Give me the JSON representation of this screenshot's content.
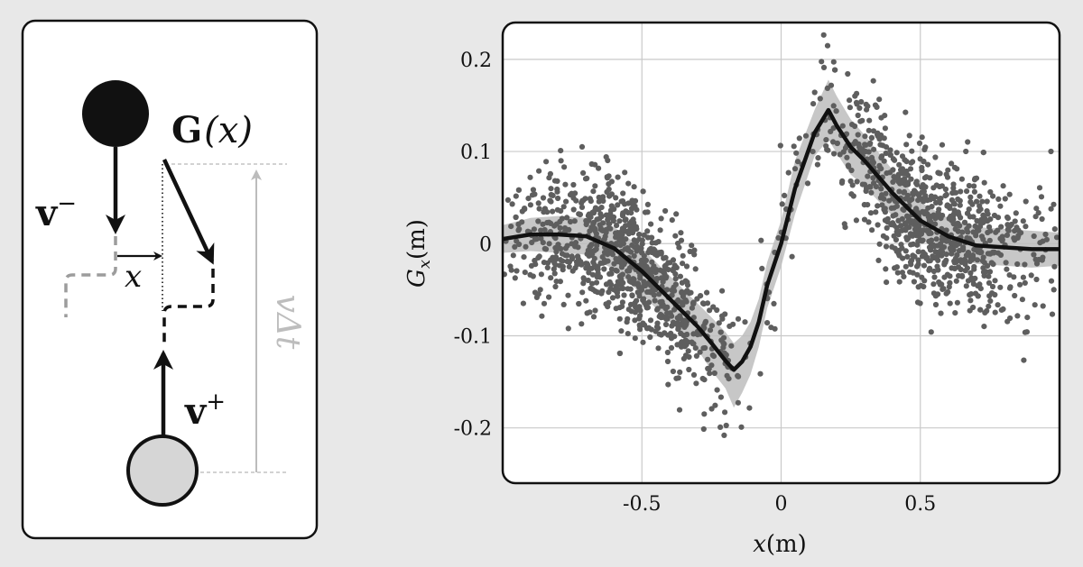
{
  "diagram": {
    "label_G": "G",
    "label_G_arg": "(x)",
    "label_v_minus": "v",
    "label_v_minus_sup": "−",
    "label_v_plus": "v",
    "label_v_plus_sup": "+",
    "label_x": "x",
    "label_v_delta_t": "vΔt"
  },
  "chart_data": {
    "type": "scatter",
    "title": "",
    "xlabel": "x(m)",
    "ylabel": "G_x(m)",
    "xlim": [
      -1.0,
      1.0
    ],
    "ylim": [
      -0.26,
      0.24
    ],
    "xticks": [
      -0.5,
      0,
      0.5
    ],
    "xtick_labels": [
      "-0.5",
      "0",
      "0.5"
    ],
    "yticks": [
      0.2,
      0.1,
      0,
      -0.1,
      -0.2
    ],
    "ytick_labels": [
      "0.2",
      "0.1",
      "0",
      "-0.1",
      "-0.2"
    ],
    "grid": true,
    "legend": "none",
    "colors": {
      "mean_line": "#111111",
      "band": "#bdbdbd",
      "points": "#5e5e5e"
    },
    "series": [
      {
        "kind": "line",
        "x": [
          -1.0,
          -0.9,
          -0.8,
          -0.7,
          -0.6,
          -0.5,
          -0.4,
          -0.3,
          -0.25,
          -0.2,
          -0.17,
          -0.14,
          -0.11,
          -0.08,
          -0.05,
          0.0,
          0.05,
          0.12,
          0.17,
          0.2,
          0.25,
          0.3,
          0.4,
          0.5,
          0.6,
          0.7,
          0.8,
          0.9,
          1.0
        ],
        "y": [
          0.005,
          0.01,
          0.01,
          0.008,
          -0.005,
          -0.03,
          -0.06,
          -0.09,
          -0.108,
          -0.127,
          -0.137,
          -0.128,
          -0.112,
          -0.085,
          -0.045,
          0.0,
          0.06,
          0.12,
          0.145,
          0.128,
          0.105,
          0.09,
          0.055,
          0.025,
          0.008,
          -0.002,
          -0.004,
          -0.006,
          -0.006
        ]
      },
      {
        "kind": "band",
        "x": [
          -1.0,
          -0.9,
          -0.8,
          -0.7,
          -0.6,
          -0.5,
          -0.4,
          -0.3,
          -0.25,
          -0.2,
          -0.17,
          -0.14,
          -0.11,
          -0.08,
          -0.05,
          0.0,
          0.05,
          0.12,
          0.17,
          0.2,
          0.25,
          0.3,
          0.4,
          0.5,
          0.6,
          0.7,
          0.8,
          0.9,
          1.0
        ],
        "upper": [
          0.02,
          0.028,
          0.03,
          0.028,
          0.018,
          -0.005,
          -0.035,
          -0.065,
          -0.08,
          -0.096,
          -0.108,
          -0.1,
          -0.085,
          -0.06,
          -0.02,
          0.025,
          0.09,
          0.145,
          0.178,
          0.16,
          0.135,
          0.118,
          0.08,
          0.045,
          0.028,
          0.018,
          0.016,
          0.014,
          0.012
        ],
        "lower": [
          -0.01,
          -0.008,
          -0.01,
          -0.012,
          -0.028,
          -0.055,
          -0.085,
          -0.115,
          -0.138,
          -0.157,
          -0.178,
          -0.162,
          -0.142,
          -0.112,
          -0.07,
          -0.025,
          0.032,
          0.095,
          0.113,
          0.098,
          0.075,
          0.062,
          0.03,
          0.005,
          -0.012,
          -0.022,
          -0.024,
          -0.026,
          -0.024
        ]
      },
      {
        "kind": "scatter",
        "description": "Approx. 1800 grey noisy observations scattered around the mean curve",
        "count": 1800,
        "noise_std": 0.04
      }
    ]
  }
}
